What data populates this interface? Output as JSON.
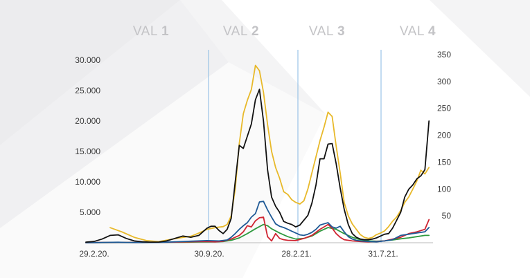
{
  "chart_data": {
    "type": "line",
    "waves": [
      {
        "prefix": "VAL ",
        "num": "1"
      },
      {
        "prefix": "VAL ",
        "num": "2"
      },
      {
        "prefix": "VAL ",
        "num": "3"
      },
      {
        "prefix": "VAL ",
        "num": "4"
      }
    ],
    "wave_separators_date": [
      "30.9.20.",
      "28.2.21.",
      "31.7.21."
    ],
    "x_ticks": [
      "29.2.20.",
      "30.9.20.",
      "28.2.21.",
      "31.7.21."
    ],
    "y_left": {
      "ticks": [
        "30.000",
        "25.000",
        "20.000",
        "15.000",
        "10.000",
        "5.000"
      ],
      "tick_values": [
        30000,
        25000,
        20000,
        15000,
        10000,
        5000
      ],
      "ylim": [
        0,
        30000
      ]
    },
    "y_right": {
      "ticks": [
        "350",
        "300",
        "250",
        "200",
        "150",
        "100",
        "50"
      ],
      "tick_values": [
        350,
        300,
        250,
        200,
        150,
        100,
        50
      ],
      "ylim": [
        0,
        350
      ]
    },
    "x_range_weeks": [
      0,
      86
    ],
    "series": [
      {
        "color": "#e8b92a",
        "axis": "right",
        "points": [
          [
            6,
            28
          ],
          [
            9,
            20
          ],
          [
            12,
            10
          ],
          [
            15,
            4
          ],
          [
            18,
            2
          ],
          [
            21,
            6
          ],
          [
            24,
            10
          ],
          [
            26,
            12
          ],
          [
            28,
            18
          ],
          [
            30,
            25
          ],
          [
            32,
            28
          ],
          [
            34,
            30
          ],
          [
            35,
            34
          ],
          [
            36,
            50
          ],
          [
            37,
            100
          ],
          [
            38,
            185
          ],
          [
            39,
            240
          ],
          [
            40,
            265
          ],
          [
            41,
            285
          ],
          [
            42,
            330
          ],
          [
            43,
            320
          ],
          [
            44,
            280
          ],
          [
            45,
            220
          ],
          [
            46,
            170
          ],
          [
            47,
            140
          ],
          [
            48,
            120
          ],
          [
            49,
            95
          ],
          [
            50,
            90
          ],
          [
            51,
            80
          ],
          [
            52,
            75
          ],
          [
            53,
            72
          ],
          [
            54,
            78
          ],
          [
            55,
            100
          ],
          [
            56,
            130
          ],
          [
            57,
            160
          ],
          [
            58,
            190
          ],
          [
            59,
            215
          ],
          [
            60,
            243
          ],
          [
            61,
            235
          ],
          [
            62,
            180
          ],
          [
            63,
            130
          ],
          [
            64,
            75
          ],
          [
            65,
            50
          ],
          [
            66,
            35
          ],
          [
            67,
            25
          ],
          [
            68,
            15
          ],
          [
            69,
            10
          ],
          [
            70,
            8
          ],
          [
            71,
            10
          ],
          [
            72,
            15
          ],
          [
            73,
            18
          ],
          [
            74,
            22
          ],
          [
            75,
            30
          ],
          [
            76,
            40
          ],
          [
            77,
            48
          ],
          [
            78,
            60
          ],
          [
            79,
            75
          ],
          [
            80,
            85
          ],
          [
            81,
            100
          ],
          [
            82,
            115
          ],
          [
            83,
            135
          ],
          [
            84,
            128
          ],
          [
            85,
            140
          ]
        ]
      },
      {
        "color": "#111111",
        "axis": "left",
        "points": [
          [
            0,
            100
          ],
          [
            2,
            200
          ],
          [
            4,
            600
          ],
          [
            6,
            1200
          ],
          [
            8,
            1300
          ],
          [
            10,
            700
          ],
          [
            12,
            300
          ],
          [
            14,
            150
          ],
          [
            16,
            100
          ],
          [
            18,
            100
          ],
          [
            20,
            300
          ],
          [
            22,
            700
          ],
          [
            24,
            1100
          ],
          [
            26,
            900
          ],
          [
            28,
            1200
          ],
          [
            30,
            2400
          ],
          [
            31,
            2700
          ],
          [
            32,
            2700
          ],
          [
            33,
            2000
          ],
          [
            34,
            1500
          ],
          [
            35,
            2200
          ],
          [
            36,
            4000
          ],
          [
            37,
            10000
          ],
          [
            38,
            16000
          ],
          [
            39,
            15500
          ],
          [
            40,
            17500
          ],
          [
            41,
            19500
          ],
          [
            42,
            23500
          ],
          [
            43,
            25200
          ],
          [
            44,
            20000
          ],
          [
            45,
            12000
          ],
          [
            46,
            7500
          ],
          [
            47,
            6000
          ],
          [
            48,
            5000
          ],
          [
            49,
            3500
          ],
          [
            50,
            3200
          ],
          [
            51,
            3000
          ],
          [
            52,
            2600
          ],
          [
            53,
            2900
          ],
          [
            54,
            3700
          ],
          [
            55,
            4500
          ],
          [
            56,
            6500
          ],
          [
            57,
            9500
          ],
          [
            58,
            13800
          ],
          [
            59,
            13800
          ],
          [
            60,
            16200
          ],
          [
            61,
            16300
          ],
          [
            62,
            13000
          ],
          [
            63,
            9000
          ],
          [
            64,
            5500
          ],
          [
            65,
            3000
          ],
          [
            66,
            1500
          ],
          [
            67,
            900
          ],
          [
            68,
            600
          ],
          [
            69,
            500
          ],
          [
            70,
            500
          ],
          [
            71,
            600
          ],
          [
            72,
            800
          ],
          [
            73,
            1100
          ],
          [
            74,
            1400
          ],
          [
            75,
            1500
          ],
          [
            76,
            2400
          ],
          [
            77,
            3700
          ],
          [
            78,
            5000
          ],
          [
            79,
            7500
          ],
          [
            80,
            8800
          ],
          [
            81,
            9500
          ],
          [
            82,
            10500
          ],
          [
            83,
            11000
          ],
          [
            84,
            12000
          ],
          [
            85,
            20000
          ]
        ]
      },
      {
        "color": "#1f5a96",
        "axis": "left",
        "points": [
          [
            0,
            0
          ],
          [
            4,
            50
          ],
          [
            8,
            80
          ],
          [
            10,
            50
          ],
          [
            14,
            30
          ],
          [
            18,
            50
          ],
          [
            22,
            150
          ],
          [
            26,
            250
          ],
          [
            30,
            350
          ],
          [
            33,
            300
          ],
          [
            35,
            450
          ],
          [
            36,
            900
          ],
          [
            37,
            1500
          ],
          [
            38,
            2200
          ],
          [
            39,
            2800
          ],
          [
            40,
            3300
          ],
          [
            41,
            4200
          ],
          [
            42,
            4800
          ],
          [
            43,
            6700
          ],
          [
            44,
            6800
          ],
          [
            45,
            5400
          ],
          [
            46,
            4200
          ],
          [
            47,
            3100
          ],
          [
            48,
            2700
          ],
          [
            49,
            2500
          ],
          [
            50,
            2200
          ],
          [
            51,
            1900
          ],
          [
            52,
            1600
          ],
          [
            53,
            1300
          ],
          [
            54,
            1200
          ],
          [
            55,
            1400
          ],
          [
            56,
            1700
          ],
          [
            57,
            2200
          ],
          [
            58,
            2900
          ],
          [
            59,
            3100
          ],
          [
            60,
            3300
          ],
          [
            61,
            2600
          ],
          [
            62,
            2400
          ],
          [
            63,
            2700
          ],
          [
            64,
            1800
          ],
          [
            65,
            1000
          ],
          [
            66,
            600
          ],
          [
            67,
            400
          ],
          [
            68,
            300
          ],
          [
            70,
            200
          ],
          [
            72,
            150
          ],
          [
            74,
            300
          ],
          [
            76,
            500
          ],
          [
            78,
            1200
          ],
          [
            80,
            1400
          ],
          [
            82,
            1600
          ],
          [
            84,
            1800
          ],
          [
            85,
            2500
          ]
        ]
      },
      {
        "color": "#cf2431",
        "axis": "left",
        "points": [
          [
            0,
            0
          ],
          [
            4,
            30
          ],
          [
            8,
            50
          ],
          [
            12,
            30
          ],
          [
            16,
            40
          ],
          [
            20,
            80
          ],
          [
            24,
            120
          ],
          [
            28,
            180
          ],
          [
            30,
            200
          ],
          [
            32,
            150
          ],
          [
            34,
            250
          ],
          [
            36,
            600
          ],
          [
            38,
            1200
          ],
          [
            39,
            1800
          ],
          [
            40,
            2800
          ],
          [
            41,
            2600
          ],
          [
            42,
            3600
          ],
          [
            43,
            4100
          ],
          [
            44,
            4200
          ],
          [
            45,
            1000
          ],
          [
            46,
            300
          ],
          [
            47,
            1500
          ],
          [
            48,
            700
          ],
          [
            49,
            500
          ],
          [
            50,
            400
          ],
          [
            52,
            350
          ],
          [
            54,
            700
          ],
          [
            56,
            1200
          ],
          [
            58,
            2200
          ],
          [
            60,
            3000
          ],
          [
            61,
            2400
          ],
          [
            62,
            1500
          ],
          [
            63,
            900
          ],
          [
            64,
            500
          ],
          [
            66,
            300
          ],
          [
            68,
            200
          ],
          [
            70,
            150
          ],
          [
            72,
            200
          ],
          [
            74,
            300
          ],
          [
            76,
            600
          ],
          [
            78,
            900
          ],
          [
            80,
            1500
          ],
          [
            82,
            1800
          ],
          [
            84,
            2200
          ],
          [
            85,
            3800
          ]
        ]
      },
      {
        "color": "#2f9a3f",
        "axis": "left",
        "points": [
          [
            0,
            0
          ],
          [
            4,
            20
          ],
          [
            8,
            30
          ],
          [
            12,
            30
          ],
          [
            16,
            40
          ],
          [
            20,
            60
          ],
          [
            24,
            80
          ],
          [
            28,
            120
          ],
          [
            32,
            150
          ],
          [
            34,
            200
          ],
          [
            36,
            400
          ],
          [
            38,
            800
          ],
          [
            40,
            1500
          ],
          [
            42,
            2300
          ],
          [
            44,
            3000
          ],
          [
            45,
            2800
          ],
          [
            46,
            2300
          ],
          [
            48,
            1600
          ],
          [
            50,
            1000
          ],
          [
            52,
            600
          ],
          [
            54,
            700
          ],
          [
            56,
            1100
          ],
          [
            58,
            1900
          ],
          [
            60,
            2500
          ],
          [
            62,
            2200
          ],
          [
            64,
            1500
          ],
          [
            66,
            900
          ],
          [
            68,
            500
          ],
          [
            70,
            300
          ],
          [
            72,
            250
          ],
          [
            74,
            300
          ],
          [
            76,
            450
          ],
          [
            78,
            650
          ],
          [
            80,
            800
          ],
          [
            82,
            1000
          ],
          [
            84,
            1200
          ],
          [
            85,
            1200
          ]
        ]
      }
    ]
  }
}
